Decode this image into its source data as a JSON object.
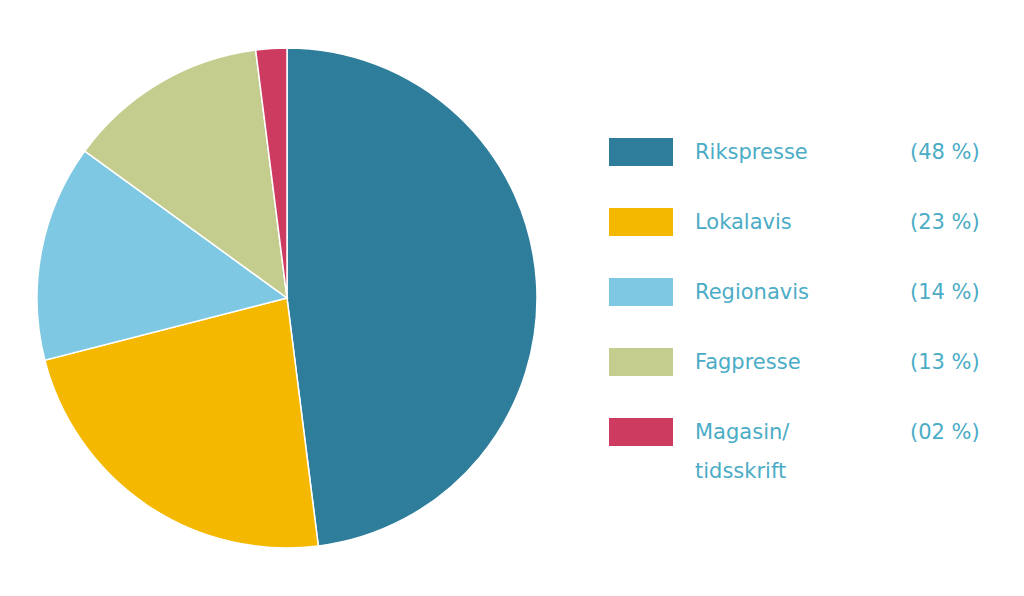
{
  "chart_data": {
    "type": "pie",
    "categories": [
      "Rikspresse",
      "Lokalavis",
      "Regionavis",
      "Fagpresse",
      "Magasin/\ntidsskrift"
    ],
    "values": [
      48,
      23,
      14,
      13,
      2
    ],
    "value_labels": [
      "(48 %)",
      "(23 %)",
      "(14 %)",
      "(13 %)",
      "(02 %)"
    ],
    "colors": [
      "#2e7d9b",
      "#f5b800",
      "#7ec8e3",
      "#c5cd8e",
      "#ce3b60"
    ],
    "legend": "right"
  }
}
